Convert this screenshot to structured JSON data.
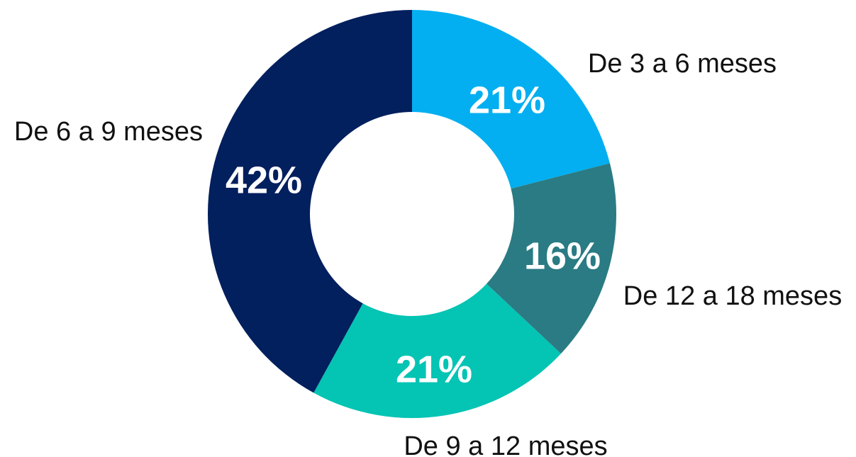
{
  "chart_data": {
    "type": "donut",
    "categories": [
      "De 3 a 6 meses",
      "De 12 a 18 meses",
      "De 9 a 12 meses",
      "De 6 a 9 meses"
    ],
    "values": [
      21,
      16,
      21,
      42
    ],
    "value_labels": [
      "21%",
      "16%",
      "21%",
      "42%"
    ],
    "colors": [
      "#03aff0",
      "#2a7b83",
      "#04c4b4",
      "#021f5e"
    ]
  }
}
